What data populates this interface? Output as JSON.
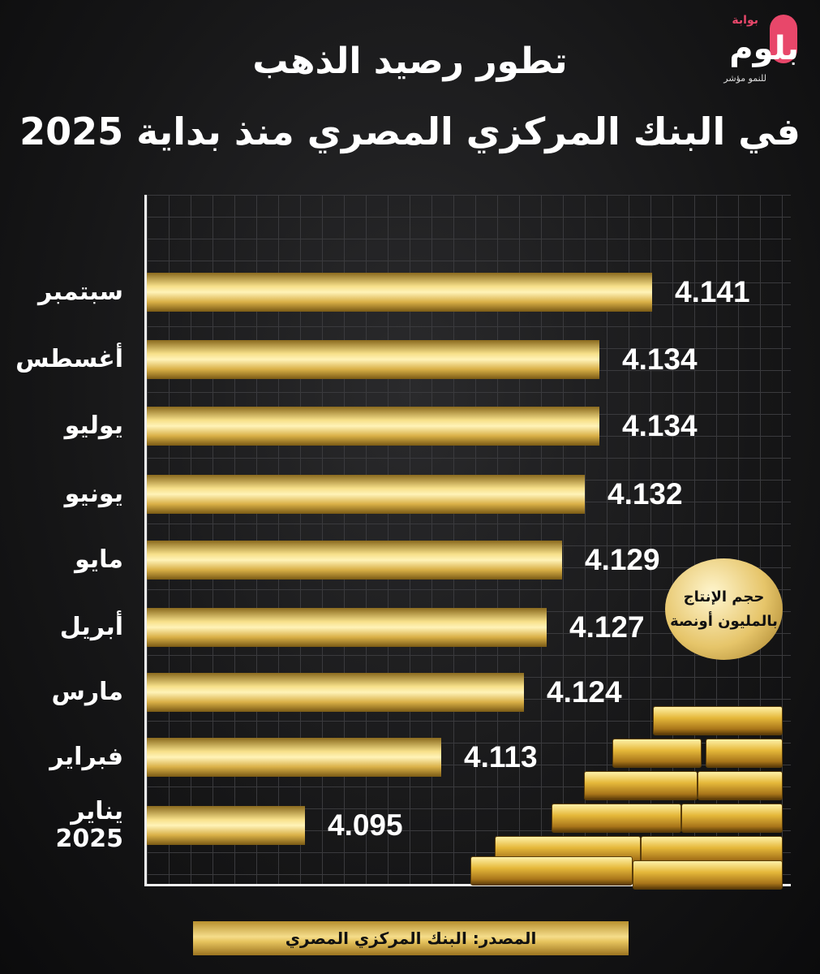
{
  "logo": {
    "top": "بوابة",
    "main": "بلوم",
    "sub": "للنمو مؤشر"
  },
  "chart_data": {
    "type": "bar",
    "orientation": "horizontal",
    "title": "تطور رصيد الذهب",
    "subtitle": "في البنك المركزي المصري منذ بداية 2025",
    "categories": [
      "سبتمبر",
      "أغسطس",
      "يوليو",
      "يونيو",
      "مايو",
      "أبريل",
      "مارس",
      "فبراير",
      "يناير 2025"
    ],
    "values": [
      4.141,
      4.134,
      4.134,
      4.132,
      4.129,
      4.127,
      4.124,
      4.113,
      4.095
    ],
    "value_labels": [
      "4.141",
      "4.134",
      "4.134",
      "4.132",
      "4.129",
      "4.127",
      "4.124",
      "4.113",
      "4.095"
    ],
    "unit_badge": [
      "حجم الإنتاج",
      "بالمليون أونصة"
    ],
    "grid": true,
    "bar_color": "#e6c35d"
  },
  "footer": {
    "source": "المصدر: البنك المركزي المصري"
  }
}
